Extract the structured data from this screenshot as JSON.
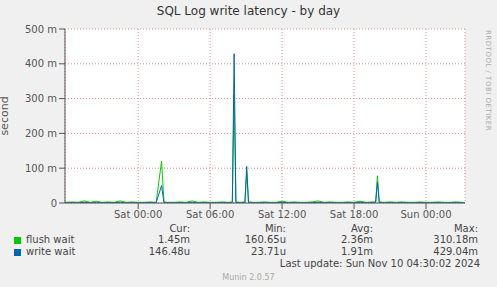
{
  "chart_data": {
    "type": "line",
    "title": "SQL Log write latency - by day",
    "y_label": "second",
    "x": [
      -6.1,
      -5.5,
      -5,
      -4.5,
      -4,
      -3.5,
      -3,
      -2.5,
      -2,
      -1.5,
      -1,
      -0.5,
      0,
      0.5,
      1,
      1.5,
      1.95,
      2.15,
      2.35,
      3,
      3.5,
      4,
      4.5,
      5,
      5.5,
      6,
      6.5,
      7,
      7.5,
      7.85,
      8.0,
      8.15,
      8.5,
      8.9,
      9.05,
      9.2,
      9.6,
      10,
      10.5,
      11,
      11.5,
      12,
      12.5,
      13,
      13.5,
      14,
      14.5,
      15,
      15.5,
      16,
      16.5,
      17,
      17.5,
      18,
      18.5,
      19,
      19.5,
      19.8,
      19.95,
      20.1,
      20.5,
      21,
      21.5,
      22,
      22.5,
      23,
      23.5,
      24,
      24.5,
      25,
      25.5,
      26,
      26.5,
      27,
      27.25
    ],
    "series": [
      {
        "name": "flush wait",
        "color": "#00cc00",
        "stats": [
          "1.45m",
          "160.65u",
          "2.36m",
          "310.18m"
        ],
        "values": [
          0.002,
          0.003,
          0.002,
          0.006,
          0.002,
          0.005,
          0.002,
          0.003,
          0.002,
          0.006,
          0.002,
          0.003,
          0.002,
          0.002,
          0.003,
          0.002,
          0.12,
          0.004,
          0.002,
          0.002,
          0.003,
          0.002,
          0.006,
          0.002,
          0.003,
          0.002,
          0.002,
          0.003,
          0.002,
          0.003,
          0.31,
          0.003,
          0.002,
          0.003,
          0.09,
          0.003,
          0.002,
          0.002,
          0.003,
          0.002,
          0.002,
          0.005,
          0.002,
          0.003,
          0.002,
          0.002,
          0.003,
          0.006,
          0.002,
          0.003,
          0.002,
          0.002,
          0.003,
          0.002,
          0.005,
          0.002,
          0.003,
          0.003,
          0.078,
          0.003,
          0.002,
          0.003,
          0.002,
          0.003,
          0.002,
          0.002,
          0.003,
          0.002,
          0.002,
          0.003,
          0.002,
          0.002,
          0.003,
          0.002,
          0.0015
        ]
      },
      {
        "name": "write wait",
        "color": "#0066b3",
        "stats": [
          "146.48u",
          "23.71u",
          "1.91m",
          "429.04m"
        ],
        "values": [
          0.0005,
          0.001,
          0.0005,
          0.002,
          0.0005,
          0.001,
          0.0005,
          0.001,
          0.0005,
          0.002,
          0.0005,
          0.001,
          0.0005,
          0.0005,
          0.001,
          0.0005,
          0.05,
          0.001,
          0.0005,
          0.0005,
          0.001,
          0.0005,
          0.002,
          0.0005,
          0.001,
          0.0005,
          0.0005,
          0.001,
          0.0005,
          0.001,
          0.429,
          0.001,
          0.0005,
          0.001,
          0.105,
          0.001,
          0.0005,
          0.0005,
          0.001,
          0.0005,
          0.0005,
          0.002,
          0.0005,
          0.001,
          0.0005,
          0.0005,
          0.001,
          0.002,
          0.0005,
          0.001,
          0.0005,
          0.0005,
          0.001,
          0.0005,
          0.002,
          0.0005,
          0.001,
          0.001,
          0.06,
          0.001,
          0.0005,
          0.001,
          0.0005,
          0.001,
          0.0005,
          0.0005,
          0.001,
          0.0005,
          0.0005,
          0.001,
          0.0005,
          0.0005,
          0.001,
          0.0005,
          0.00015
        ]
      }
    ],
    "stats_header": [
      "Cur:",
      "Min:",
      "Avg:",
      "Max:"
    ],
    "xlim": [
      -6.1,
      27.25
    ],
    "xticks": [
      {
        "value": 0,
        "label": "Sat 00:00"
      },
      {
        "value": 6,
        "label": "Sat 06:00"
      },
      {
        "value": 12,
        "label": "Sat 12:00"
      },
      {
        "value": 18,
        "label": "Sat 18:00"
      },
      {
        "value": 24,
        "label": "Sun 00:00"
      }
    ],
    "ylim": [
      0,
      0.5
    ],
    "yticks": [
      0,
      {
        "value": 0.1,
        "label": "100 m"
      },
      {
        "value": 0.2,
        "label": "200 m"
      },
      {
        "value": 0.3,
        "label": "300 m"
      },
      {
        "value": 0.4,
        "label": "400 m"
      },
      {
        "value": 0.5,
        "label": "500 m"
      }
    ],
    "grid": true,
    "footer": "Last update: Sun Nov 10 04:30:02 2024",
    "credit": "Munin 2.0.57",
    "watermark": "RRDTOOL / TOBI OETIKER"
  }
}
